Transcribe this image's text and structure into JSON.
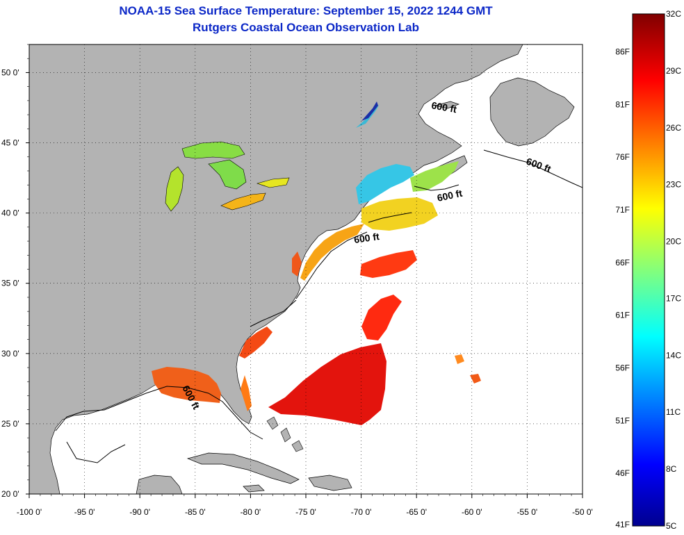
{
  "title": "NOAA-15 Sea Surface Temperature:  September 15, 2022 1244 GMT",
  "subtitle": "Rutgers Coastal Ocean Observation Lab",
  "colors": {
    "title": "#0b27c7",
    "land": "#b3b3b3",
    "ocean": "#ffffff"
  },
  "map": {
    "lon_range": [
      -100,
      -50
    ],
    "lat_range": [
      20,
      52
    ],
    "lon_ticks": [
      "-100 0'",
      "-95 0'",
      "-90 0'",
      "-85 0'",
      "-80 0'",
      "-75 0'",
      "-70 0'",
      "-65 0'",
      "-60 0'",
      "-55 0'",
      "-50 0'"
    ],
    "lat_ticks": [
      {
        "lat": 50,
        "label": "50 0'"
      },
      {
        "lat": 45,
        "label": "45 0'"
      },
      {
        "lat": 40,
        "label": "40 0'"
      },
      {
        "lat": 35,
        "label": "35 0'"
      },
      {
        "lat": 30,
        "label": "30 0'"
      },
      {
        "lat": 25,
        "label": "25 0'"
      },
      {
        "lat": 20,
        "label": "20 0'"
      }
    ],
    "grid": true,
    "isobath_labels": [
      "600 ft",
      "600 ft",
      "600 ft",
      "600 ft",
      "600 ft"
    ]
  },
  "colorbar": {
    "min_c": 5,
    "max_c": 32,
    "celsius_labels": [
      "32C",
      "29C",
      "26C",
      "23C",
      "20C",
      "17C",
      "14C",
      "11C",
      "8C",
      "5C"
    ],
    "fahrenheit_labels": [
      "86F",
      "81F",
      "76F",
      "71F",
      "66F",
      "61F",
      "56F",
      "51F",
      "46F",
      "41F"
    ]
  }
}
